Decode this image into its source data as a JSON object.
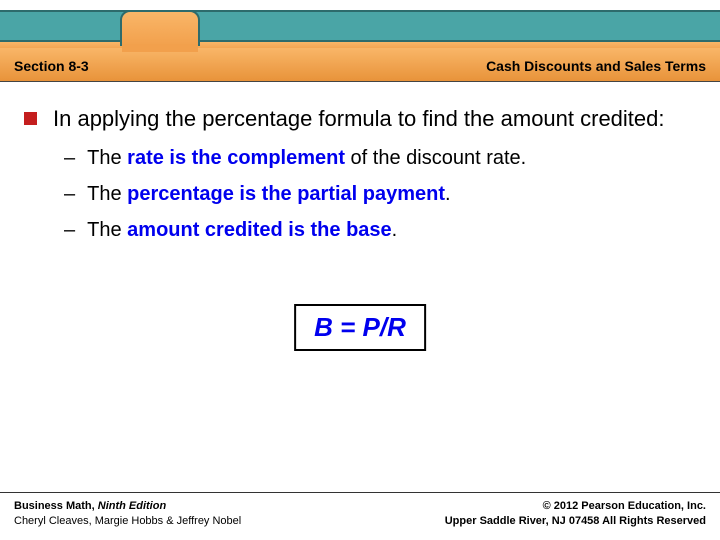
{
  "header": {
    "section_left": "Section 8-3",
    "section_right": "Cash Discounts and Sales Terms",
    "colors": {
      "teal": "#4aa5a6",
      "teal_border": "#2d6b6c",
      "orange_top": "#f9b668",
      "orange_bottom": "#e8933a"
    }
  },
  "content": {
    "main_bullet": "In applying the percentage formula to find the amount credited:",
    "bullet_color": "#c41e1e",
    "sub1_pre": "The ",
    "sub1_blue": "rate is the complement",
    "sub1_post": " of the discount rate.",
    "sub2_pre": "The ",
    "sub2_blue": "percentage is the partial payment",
    "sub2_post": ".",
    "sub3_pre": "The ",
    "sub3_blue": "amount credited is the base",
    "sub3_post": ".",
    "formula": "B = P/R",
    "blue_color": "#0000ee"
  },
  "footer": {
    "book_title": "Business Math, ",
    "edition": "Ninth Edition",
    "authors": "Cheryl Cleaves, Margie Hobbs & Jeffrey Nobel",
    "copyright": "© 2012 Pearson Education, Inc.",
    "address": "Upper Saddle River, NJ 07458  All Rights Reserved"
  }
}
